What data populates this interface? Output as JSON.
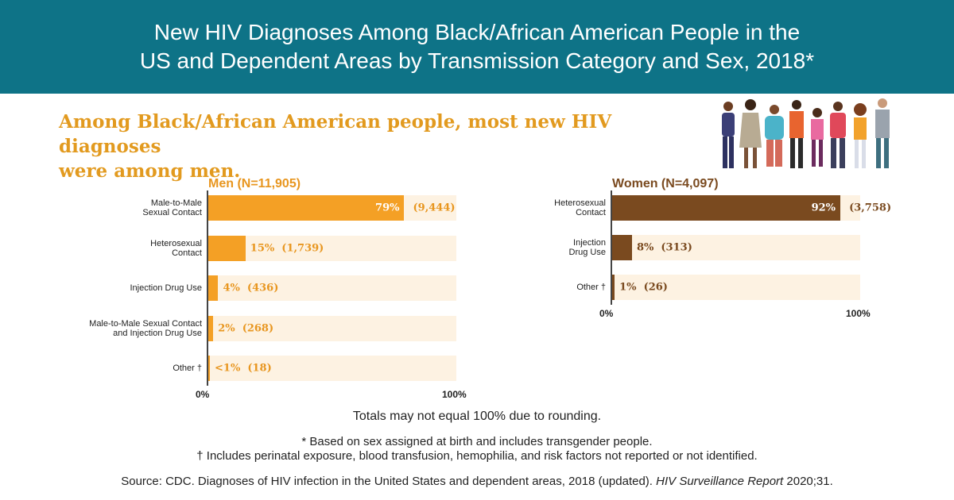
{
  "header": {
    "line1": "New HIV Diagnoses Among Black/African American People in the",
    "line2": "US and Dependent Areas by Transmission Category and Sex, 2018*"
  },
  "subtitle": {
    "line1": "Among Black/African American people, most new HIV diagnoses",
    "line2": "were among men."
  },
  "colors": {
    "header_bg": "#0e7387",
    "men_bar": "#f4a025",
    "men_text": "#e8961f",
    "women_bar": "#7a4a1f",
    "women_text": "#7a4a1f",
    "track": "#fdf2e2",
    "subtitle": "#e29a1f"
  },
  "chart_data": [
    {
      "type": "bar",
      "orientation": "horizontal",
      "title": "Men (N=11,905)",
      "categories": [
        "Male-to-Male\nSexual Contact",
        "Heterosexual\nContact",
        "Injection Drug Use",
        "Male-to-Male Sexual Contact\nand Injection Drug Use",
        "Other †"
      ],
      "values": [
        79,
        15,
        4,
        2,
        0.5
      ],
      "value_labels": [
        "79%",
        "15%",
        "4%",
        "2%",
        "<1%"
      ],
      "counts": [
        "(9,444)",
        "(1,739)",
        "(436)",
        "(268)",
        "(18)"
      ],
      "xlim": [
        0,
        100
      ],
      "x_ticks": [
        "0%",
        "100%"
      ]
    },
    {
      "type": "bar",
      "orientation": "horizontal",
      "title": "Women (N=4,097)",
      "categories": [
        "Heterosexual\nContact",
        "Injection\nDrug Use",
        "Other †"
      ],
      "values": [
        92,
        8,
        1
      ],
      "value_labels": [
        "92%",
        "8%",
        "1%"
      ],
      "counts": [
        "(3,758)",
        "(313)",
        "(26)"
      ],
      "xlim": [
        0,
        100
      ],
      "x_ticks": [
        "0%",
        "100%"
      ]
    }
  ],
  "notes": {
    "rounding": "Totals may not equal 100% due to rounding.",
    "footnote1": "* Based on sex assigned at birth and includes transgender people.",
    "footnote2": "† Includes perinatal exposure, blood transfusion, hemophilia, and risk factors not reported or not identified.",
    "source_prefix": "Source: CDC. Diagnoses of HIV infection in the United States and dependent areas, 2018 (updated). ",
    "source_journal": "HIV Surveillance Report",
    "source_suffix": " 2020;31."
  },
  "illustration": "people-group-icon"
}
